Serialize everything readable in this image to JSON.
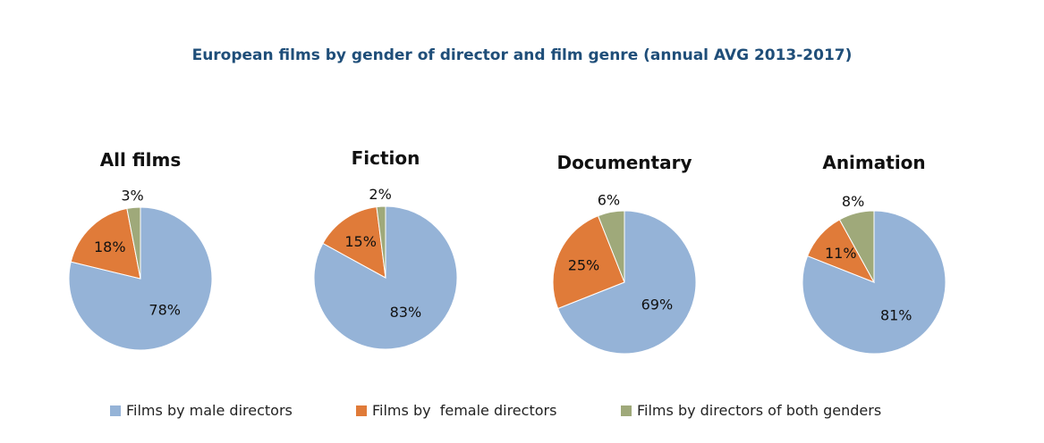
{
  "chart_data": {
    "type": "pie",
    "title": "European films by gender of director and film genre (annual AVG 2013-2017)",
    "series_names": [
      "Films by male directors",
      "Films by  female directors",
      "Films by directors of both genders"
    ],
    "colors": [
      "#95b3d7",
      "#e07b39",
      "#9fa97a"
    ],
    "legend_position": "bottom",
    "pies": [
      {
        "title": "All films",
        "values": [
          78,
          18,
          3
        ],
        "labels": [
          "78%",
          "18%",
          "3%"
        ]
      },
      {
        "title": "Fiction",
        "values": [
          83,
          15,
          2
        ],
        "labels": [
          "83%",
          "15%",
          "2%"
        ]
      },
      {
        "title": "Documentary",
        "values": [
          69,
          25,
          6
        ],
        "labels": [
          "69%",
          "25%",
          "6%"
        ]
      },
      {
        "title": "Animation",
        "values": [
          81,
          11,
          8
        ],
        "labels": [
          "81%",
          "11%",
          "8%"
        ]
      }
    ]
  }
}
